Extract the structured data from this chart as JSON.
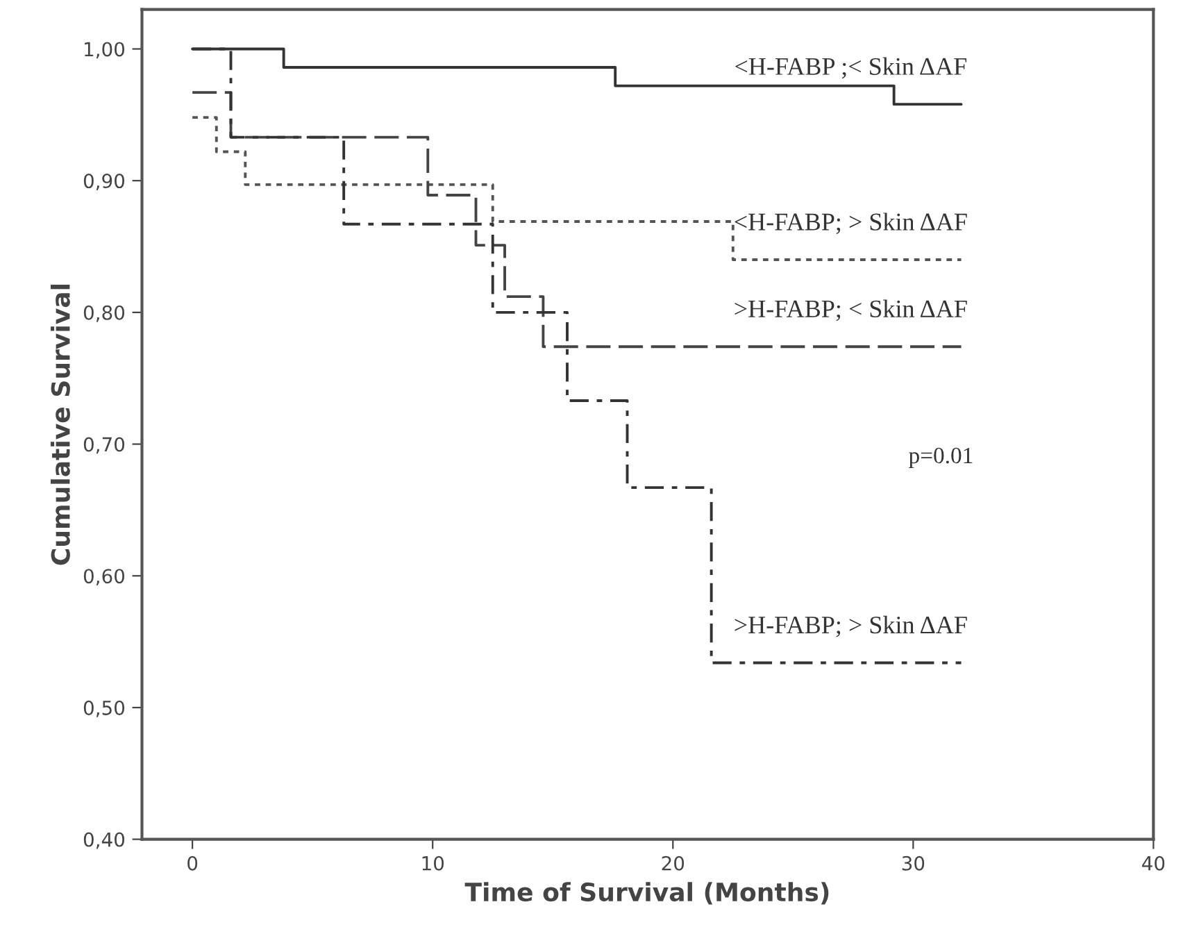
{
  "chart_data": {
    "type": "step",
    "xlabel": "Time of Survival (Months)",
    "ylabel": "Cumulative Survival",
    "xlim": [
      -2.1,
      40
    ],
    "ylim": [
      0.4,
      1.03
    ],
    "xticks": [
      0,
      10,
      20,
      30,
      40
    ],
    "yticks": [
      {
        "value": 0.4,
        "label": "0,40"
      },
      {
        "value": 0.5,
        "label": "0,50"
      },
      {
        "value": 0.6,
        "label": "0,60"
      },
      {
        "value": 0.7,
        "label": "0,70"
      },
      {
        "value": 0.8,
        "label": "0,80"
      },
      {
        "value": 0.9,
        "label": "0,90"
      },
      {
        "value": 1.0,
        "label": "1,00"
      }
    ],
    "grid": false,
    "legend": false,
    "marker": "none",
    "annotations": [
      "p=0.01"
    ],
    "series": [
      {
        "name": "<H-FABP ;< Skin ΔAF",
        "color": "#333333",
        "line_style": "solid",
        "x": [
          0,
          3.8,
          17.6,
          29.2,
          32
        ],
        "values": [
          1.0,
          0.986,
          0.972,
          0.958,
          0.958
        ]
      },
      {
        "name": "<H-FABP; > Skin ΔAF",
        "color": "#555555",
        "line_style": "dotted",
        "x": [
          0,
          1.0,
          2.2,
          12.5,
          22.5,
          32
        ],
        "values": [
          0.948,
          0.922,
          0.897,
          0.869,
          0.84,
          0.84
        ]
      },
      {
        "name": ">H-FABP; < Skin ΔAF",
        "color": "#444444",
        "line_style": "dashed",
        "x": [
          0,
          1.6,
          9.8,
          11.8,
          13.0,
          14.6,
          32
        ],
        "values": [
          0.967,
          0.933,
          0.889,
          0.851,
          0.812,
          0.774,
          0.774
        ]
      },
      {
        "name": ">H-FABP; > Skin ΔAF",
        "color": "#333333",
        "line_style": "dashdot",
        "x": [
          0,
          1.6,
          6.3,
          12.5,
          15.6,
          18.1,
          21.6,
          32
        ],
        "values": [
          1.0,
          0.933,
          0.867,
          0.8,
          0.733,
          0.667,
          0.534,
          0.534
        ]
      }
    ]
  }
}
